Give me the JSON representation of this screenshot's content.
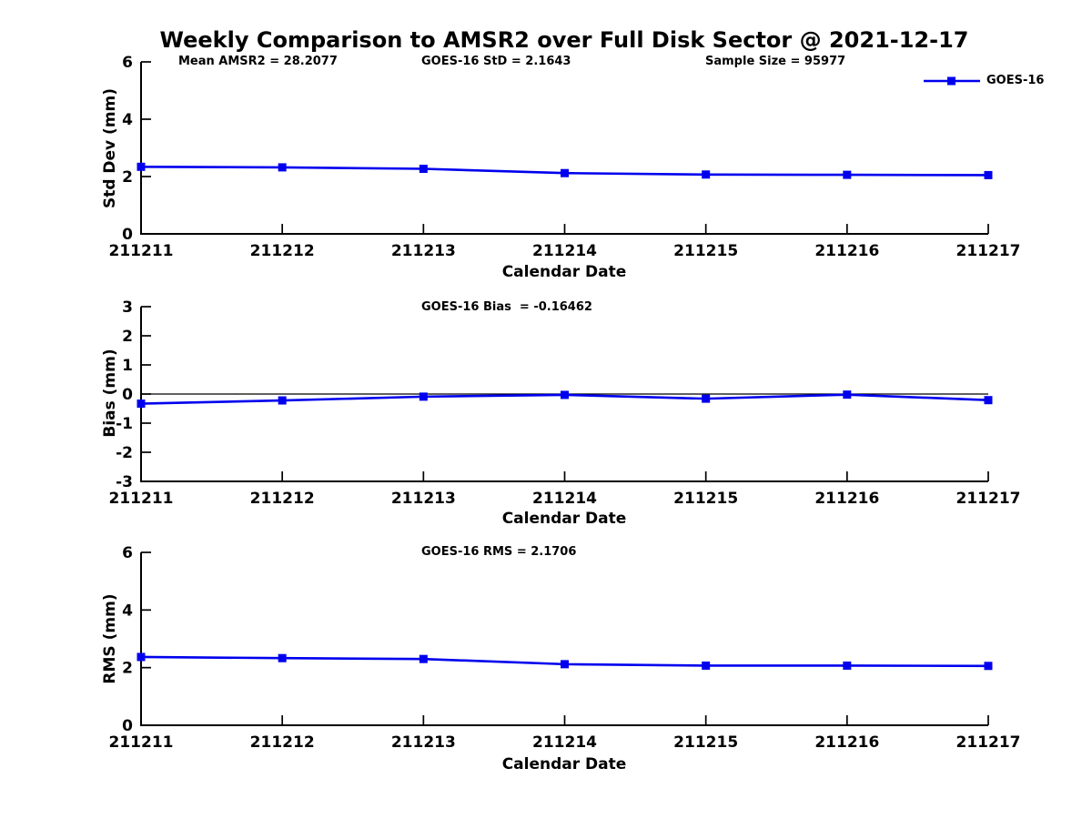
{
  "figure": {
    "title": "Weekly Comparison to AMSR2 over Full Disk Sector @ 2021-12-17"
  },
  "colors": {
    "series": "#0000EE",
    "axis": "#000000"
  },
  "chart_data": [
    {
      "type": "line",
      "panel": "std_dev",
      "annotations": [
        "Mean AMSR2 = 28.2077",
        "GOES-16 StD = 2.1643",
        "Sample Size = 95977"
      ],
      "categories": [
        "211211",
        "211212",
        "211213",
        "211214",
        "211215",
        "211216",
        "211217"
      ],
      "series": [
        {
          "name": "GOES-16",
          "values": [
            2.34,
            2.32,
            2.27,
            2.12,
            2.07,
            2.06,
            2.05
          ]
        }
      ],
      "xlabel": "Calendar Date",
      "ylabel": "Std Dev (mm)",
      "ylim": [
        0,
        6
      ],
      "yticks": [
        0,
        2,
        4,
        6
      ],
      "grid": false,
      "legend": {
        "label": "GOES-16",
        "position": "top-right",
        "marker": "square"
      }
    },
    {
      "type": "line",
      "panel": "bias",
      "annotations": [
        "GOES-16 Bias  = -0.16462"
      ],
      "categories": [
        "211211",
        "211212",
        "211213",
        "211214",
        "211215",
        "211216",
        "211217"
      ],
      "series": [
        {
          "name": "GOES-16",
          "values": [
            -0.33,
            -0.22,
            -0.09,
            -0.03,
            -0.16,
            -0.02,
            -0.21
          ]
        }
      ],
      "xlabel": "Calendar Date",
      "ylabel": "Bias (mm)",
      "ylim": [
        -3,
        3
      ],
      "yticks": [
        3,
        2,
        1,
        0,
        -1,
        -2,
        -3
      ],
      "zero_line": true,
      "grid": false
    },
    {
      "type": "line",
      "panel": "rms",
      "annotations": [
        "GOES-16 RMS = 2.1706"
      ],
      "categories": [
        "211211",
        "211212",
        "211213",
        "211214",
        "211215",
        "211216",
        "211217"
      ],
      "series": [
        {
          "name": "GOES-16",
          "values": [
            2.37,
            2.33,
            2.3,
            2.12,
            2.07,
            2.07,
            2.06
          ]
        }
      ],
      "xlabel": "Calendar Date",
      "ylabel": "RMS (mm)",
      "ylim": [
        0,
        6
      ],
      "yticks": [
        0,
        2,
        4,
        6
      ],
      "grid": false
    }
  ]
}
